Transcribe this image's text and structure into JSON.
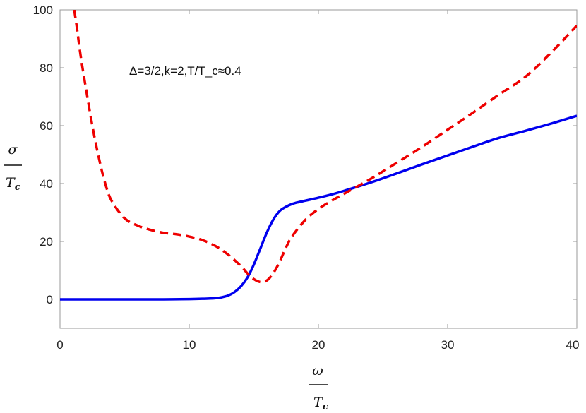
{
  "chart_data": {
    "type": "line",
    "annotation": "Δ=3/2,k=2,T/T_c≈0.4",
    "xlabel": {
      "top": "ω",
      "bottom_main": "T",
      "bottom_sub": "c"
    },
    "ylabel": {
      "top": "σ",
      "bottom_main": "T",
      "bottom_sub": "c"
    },
    "xlim": [
      0,
      40
    ],
    "ylim": [
      -10,
      100
    ],
    "x_ticks": [
      "0",
      "10",
      "20",
      "30",
      "40"
    ],
    "y_ticks": [
      "0",
      "20",
      "40",
      "60",
      "80",
      "100"
    ],
    "grid": false,
    "frame_color": "#999999",
    "series": [
      {
        "color": "#0000ee",
        "dash": "solid",
        "x": [
          0,
          2,
          4,
          6,
          8,
          10,
          11,
          12,
          12.5,
          13,
          13.5,
          14,
          14.5,
          15,
          15.5,
          16,
          16.5,
          17,
          17.5,
          18,
          18.5,
          19,
          20,
          21,
          22,
          24,
          26,
          28,
          30,
          32,
          34,
          36,
          38,
          40
        ],
        "y": [
          0,
          0,
          0,
          0,
          0,
          0.1,
          0.2,
          0.4,
          0.7,
          1.3,
          2.5,
          4.5,
          7.5,
          12,
          17.5,
          23,
          27.5,
          30.5,
          32,
          33,
          33.6,
          34.1,
          35.1,
          36.2,
          37.5,
          40.3,
          43.4,
          46.6,
          49.7,
          52.8,
          55.8,
          58.2,
          60.7,
          63.4
        ]
      },
      {
        "color": "#ee0000",
        "dash": "dashed",
        "x": [
          1.1,
          1.3,
          1.6,
          2,
          2.5,
          3,
          3.5,
          4,
          5,
          6,
          7,
          8,
          9,
          10,
          11,
          12,
          13,
          14,
          14.5,
          15,
          15.5,
          16,
          16.5,
          17,
          17.5,
          18,
          19,
          20,
          21,
          22,
          24,
          26,
          28,
          30,
          32,
          34,
          36,
          38,
          40
        ],
        "y": [
          100,
          94,
          84,
          73,
          60,
          49,
          40,
          34,
          28,
          25.5,
          24,
          23,
          22.5,
          21.7,
          20.5,
          18.5,
          15.5,
          11.5,
          9,
          7,
          6,
          6.5,
          9,
          13,
          18,
          22,
          27.5,
          31.2,
          34,
          36.5,
          41.5,
          47,
          52.6,
          58.6,
          64.6,
          70.8,
          76.8,
          85.2,
          94.6
        ]
      }
    ]
  }
}
